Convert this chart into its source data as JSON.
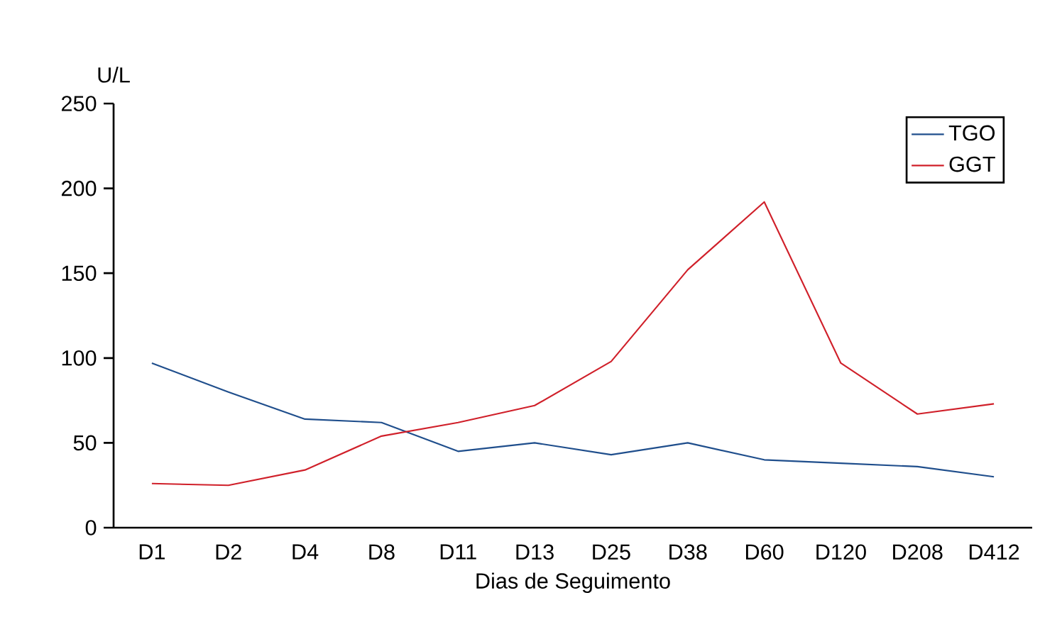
{
  "chart_data": {
    "type": "line",
    "xlabel": "Dias de Seguimento",
    "ylabel": "U/L",
    "categories": [
      "D1",
      "D2",
      "D4",
      "D8",
      "D11",
      "D13",
      "D25",
      "D38",
      "D60",
      "D120",
      "D208",
      "D412"
    ],
    "series": [
      {
        "name": "TGO",
        "color": "#1f4e8c",
        "values": [
          97,
          80,
          64,
          62,
          45,
          50,
          43,
          50,
          40,
          38,
          36,
          30
        ]
      },
      {
        "name": "GGT",
        "color": "#d0202a",
        "values": [
          26,
          25,
          34,
          54,
          62,
          72,
          98,
          152,
          192,
          97,
          67,
          73
        ]
      }
    ],
    "ylim": [
      0,
      250
    ],
    "yticks": [
      0,
      50,
      100,
      150,
      200,
      250
    ],
    "grid": false,
    "legend": "top right",
    "marker": "none",
    "line_style": "solid"
  }
}
